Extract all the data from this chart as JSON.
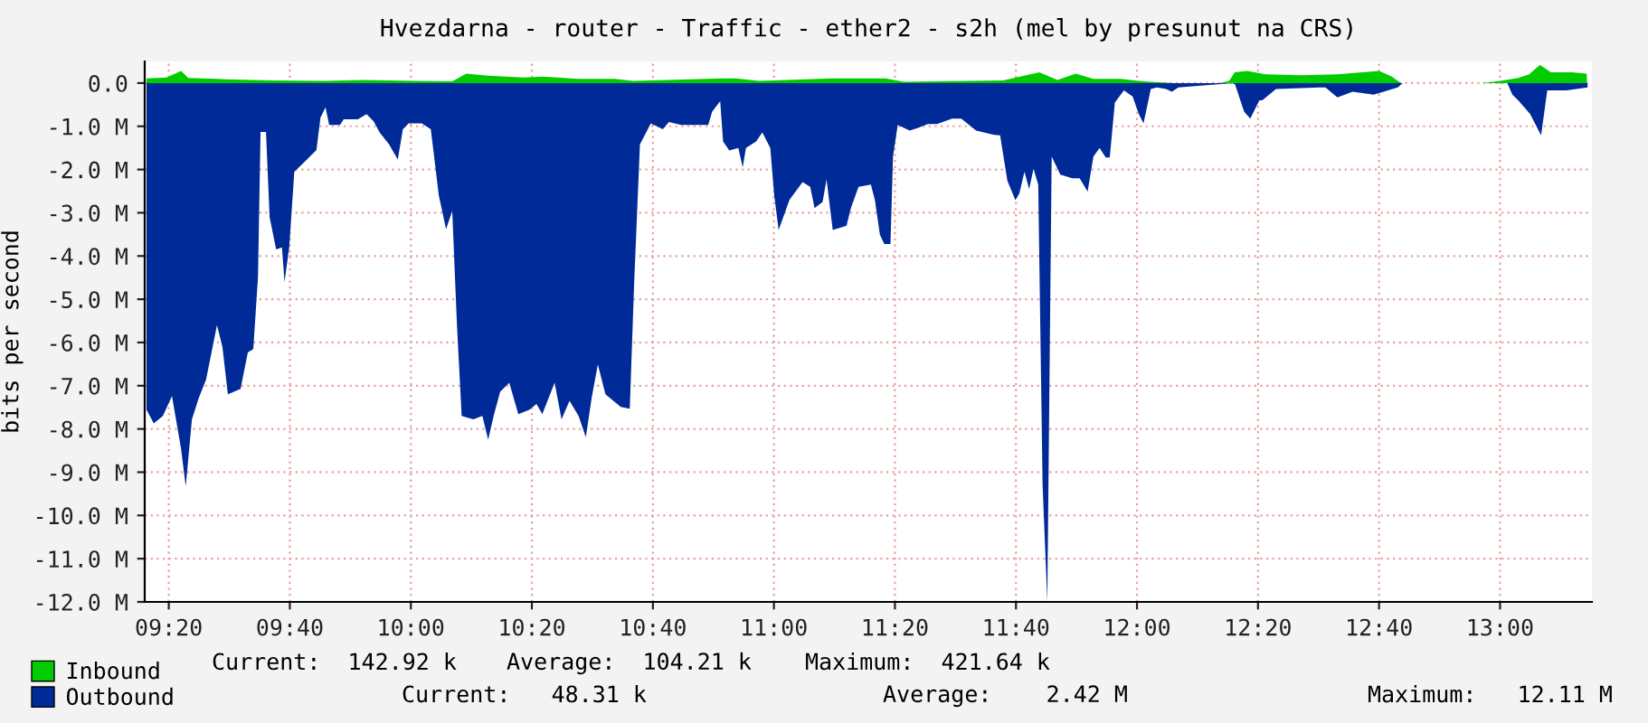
{
  "chart_data": {
    "type": "area",
    "title": "Hvezdarna - router - Traffic - ether2 - s2h (mel by presunut na CRS)",
    "ylabel": "bits per second",
    "xlim": [
      9.267,
      13.253
    ],
    "xticks": [
      {
        "value": 9.3333,
        "label": "09:20"
      },
      {
        "value": 9.6667,
        "label": "09:40"
      },
      {
        "value": 10.0,
        "label": "10:00"
      },
      {
        "value": 10.3333,
        "label": "10:20"
      },
      {
        "value": 10.6667,
        "label": "10:40"
      },
      {
        "value": 11.0,
        "label": "11:00"
      },
      {
        "value": 11.3333,
        "label": "11:20"
      },
      {
        "value": 11.6667,
        "label": "11:40"
      },
      {
        "value": 12.0,
        "label": "12:00"
      },
      {
        "value": 12.3333,
        "label": "12:20"
      },
      {
        "value": 12.6667,
        "label": "12:40"
      },
      {
        "value": 13.0,
        "label": "13:00"
      }
    ],
    "ylim": [
      -12.0,
      0.5
    ],
    "yticks": [
      {
        "value": 0,
        "label": "0.0"
      },
      {
        "value": -1,
        "label": "-1.0 M"
      },
      {
        "value": -2,
        "label": "-2.0 M"
      },
      {
        "value": -3,
        "label": "-3.0 M"
      },
      {
        "value": -4,
        "label": "-4.0 M"
      },
      {
        "value": -5,
        "label": "-5.0 M"
      },
      {
        "value": -6,
        "label": "-6.0 M"
      },
      {
        "value": -7,
        "label": "-7.0 M"
      },
      {
        "value": -8,
        "label": "-8.0 M"
      },
      {
        "value": -9,
        "label": "-9.0 M"
      },
      {
        "value": -10,
        "label": "-10.0 M"
      },
      {
        "value": -11,
        "label": "-11.0 M"
      },
      {
        "value": -12,
        "label": "-12.0 M"
      }
    ],
    "grid": true,
    "legend": "bottom",
    "series": [
      {
        "name": "Inbound",
        "color": "#00cc00",
        "x": [
          9.272,
          9.327,
          9.367,
          9.387,
          9.466,
          9.516,
          9.616,
          9.765,
          9.865,
          10.015,
          10.114,
          10.153,
          10.213,
          10.313,
          10.362,
          10.462,
          10.562,
          10.612,
          10.86,
          10.895,
          10.96,
          11.159,
          11.308,
          11.358,
          11.631,
          11.731,
          11.781,
          11.831,
          11.88,
          11.955,
          12.005,
          12.035,
          12.104,
          12.229,
          12.254,
          12.269,
          12.304,
          12.354,
          12.453,
          12.552,
          12.667,
          12.702,
          12.727,
          12.951,
          13.0,
          13.05,
          13.08,
          13.11,
          13.14,
          13.199,
          13.239
        ],
        "values": [
          0.11,
          0.13,
          0.28,
          0.12,
          0.1,
          0.08,
          0.06,
          0.05,
          0.07,
          0.05,
          0.04,
          0.22,
          0.17,
          0.13,
          0.15,
          0.1,
          0.1,
          0.05,
          0.11,
          0.11,
          0.05,
          0.11,
          0.11,
          0.03,
          0.06,
          0.25,
          0.07,
          0.22,
          0.1,
          0.1,
          0.05,
          0.03,
          0,
          0,
          0.05,
          0.25,
          0.28,
          0.2,
          0.18,
          0.2,
          0.28,
          0.15,
          0,
          0,
          0.05,
          0.12,
          0.2,
          0.42,
          0.25,
          0.25,
          0.22
        ]
      },
      {
        "name": "Outbound",
        "color": "#002a97",
        "x": [
          9.272,
          9.292,
          9.317,
          9.342,
          9.367,
          9.38,
          9.397,
          9.416,
          9.436,
          9.466,
          9.481,
          9.496,
          9.531,
          9.551,
          9.566,
          9.579,
          9.586,
          9.601,
          9.611,
          9.629,
          9.645,
          9.652,
          9.665,
          9.679,
          9.705,
          9.74,
          9.751,
          9.765,
          9.775,
          9.805,
          9.815,
          9.854,
          9.878,
          9.898,
          9.914,
          9.94,
          9.964,
          9.978,
          9.994,
          10.03,
          10.055,
          10.077,
          10.097,
          10.114,
          10.127,
          10.14,
          10.172,
          10.197,
          10.213,
          10.228,
          10.246,
          10.271,
          10.296,
          10.326,
          10.346,
          10.362,
          10.396,
          10.415,
          10.437,
          10.462,
          10.482,
          10.498,
          10.515,
          10.536,
          10.578,
          10.603,
          10.615,
          10.631,
          10.661,
          10.694,
          10.711,
          10.744,
          10.819,
          10.83,
          10.852,
          10.86,
          10.877,
          10.902,
          10.914,
          10.923,
          10.951,
          10.968,
          10.99,
          11.001,
          11.013,
          11.043,
          11.079,
          11.1,
          11.112,
          11.134,
          11.145,
          11.162,
          11.2,
          11.212,
          11.233,
          11.267,
          11.278,
          11.292,
          11.304,
          11.321,
          11.328,
          11.341,
          11.374,
          11.399,
          11.424,
          11.449,
          11.491,
          11.516,
          11.557,
          11.607,
          11.623,
          11.643,
          11.665,
          11.676,
          11.69,
          11.703,
          11.715,
          11.728,
          11.74,
          11.753,
          11.765,
          11.789,
          11.822,
          11.842,
          11.864,
          11.88,
          11.897,
          11.914,
          11.925,
          11.939,
          11.964,
          11.988,
          12.005,
          12.018,
          12.038,
          12.055,
          12.08,
          12.096,
          12.114,
          12.262,
          12.27,
          12.295,
          12.312,
          12.337,
          12.345,
          12.383,
          12.503,
          12.519,
          12.552,
          12.594,
          12.652,
          12.718,
          12.732,
          13.02,
          13.034,
          13.05,
          13.083,
          13.113,
          13.13,
          13.183,
          13.241
        ],
        "values": [
          -7.56,
          -7.87,
          -7.7,
          -7.24,
          -8.45,
          -9.33,
          -7.78,
          -7.28,
          -6.86,
          -5.6,
          -6.1,
          -7.2,
          -7.07,
          -6.23,
          -6.15,
          -4.48,
          -1.13,
          -1.13,
          -3.1,
          -3.85,
          -3.8,
          -4.6,
          -3.8,
          -2.05,
          -1.84,
          -1.55,
          -0.8,
          -0.56,
          -0.97,
          -0.97,
          -0.84,
          -0.84,
          -0.72,
          -0.89,
          -1.14,
          -1.42,
          -1.77,
          -1.07,
          -0.93,
          -0.93,
          -1.07,
          -2.6,
          -3.38,
          -2.96,
          -5.6,
          -7.7,
          -7.78,
          -7.7,
          -8.25,
          -7.7,
          -7.14,
          -6.93,
          -7.66,
          -7.56,
          -7.42,
          -7.66,
          -6.93,
          -7.78,
          -7.35,
          -7.7,
          -8.19,
          -7.28,
          -6.51,
          -7.2,
          -7.49,
          -7.53,
          -4.63,
          -1.42,
          -0.93,
          -1.07,
          -0.9,
          -0.97,
          -0.97,
          -0.66,
          -0.42,
          -1.35,
          -1.56,
          -1.5,
          -1.95,
          -1.5,
          -1.35,
          -1.14,
          -1.5,
          -2.61,
          -3.4,
          -2.7,
          -2.29,
          -2.4,
          -2.89,
          -2.75,
          -2.23,
          -3.4,
          -3.3,
          -2.89,
          -2.4,
          -2.35,
          -2.7,
          -3.51,
          -3.72,
          -3.72,
          -1.7,
          -0.97,
          -1.1,
          -1.03,
          -0.95,
          -0.95,
          -0.82,
          -0.82,
          -1.1,
          -1.2,
          -1.21,
          -2.26,
          -2.71,
          -2.55,
          -2.05,
          -2.45,
          -1.98,
          -2.35,
          -9.3,
          -12.0,
          -1.7,
          -2.12,
          -2.2,
          -2.2,
          -2.51,
          -1.7,
          -1.5,
          -1.72,
          -1.72,
          -0.45,
          -0.17,
          -0.31,
          -0.72,
          -0.93,
          -0.14,
          -0.1,
          -0.14,
          -0.2,
          -0.1,
          0,
          -0.03,
          -0.66,
          -0.82,
          -0.4,
          -0.4,
          -0.14,
          -0.1,
          -0.1,
          -0.33,
          -0.2,
          -0.27,
          -0.1,
          0,
          0,
          -0.27,
          -0.4,
          -0.72,
          -1.21,
          -0.17,
          -0.17,
          -0.1
        ]
      }
    ],
    "annotations": [
      "Current:  142.92 k",
      "Average:  104.21 k",
      "Maximum:  421.64 k",
      "Current:   48.31 k",
      "Average:    2.42 M",
      "Maximum:   12.11 M"
    ]
  }
}
